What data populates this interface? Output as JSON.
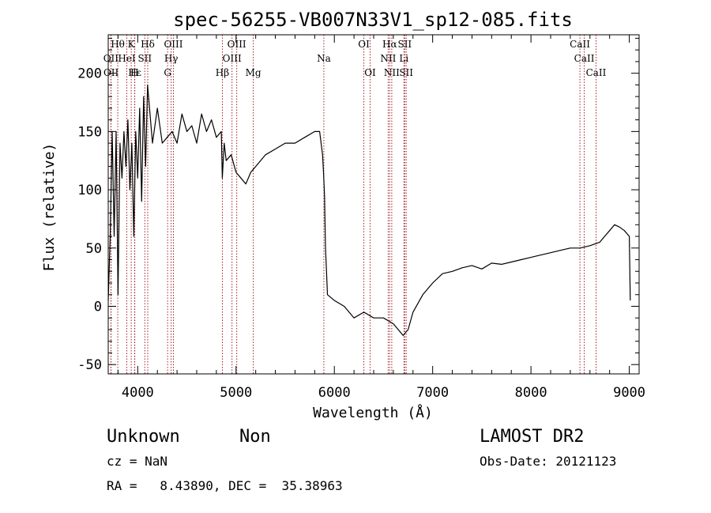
{
  "chart_data": {
    "type": "line",
    "title": "spec-56255-VB007N33V1_sp12-085.fits",
    "xlabel": "Wavelength (Å)",
    "ylabel": "Flux (relative)",
    "xlim": [
      3700,
      9100
    ],
    "ylim": [
      -58,
      233
    ],
    "x_ticks": [
      4000,
      5000,
      6000,
      7000,
      8000,
      9000
    ],
    "y_ticks": [
      -50,
      0,
      50,
      100,
      150,
      200
    ],
    "grid": false,
    "line_color": "#000000",
    "marker_color": "#a0202a",
    "series": [
      {
        "x": [
          3700,
          3720,
          3740,
          3760,
          3780,
          3800,
          3820,
          3840,
          3860,
          3880,
          3900,
          3920,
          3940,
          3960,
          3980,
          4000,
          4020,
          4040,
          4060,
          4080,
          4100,
          4150,
          4200,
          4250,
          4300,
          4350,
          4400,
          4450,
          4500,
          4550,
          4600,
          4650,
          4700,
          4750,
          4800,
          4850,
          4860,
          4880,
          4900,
          4950,
          5000,
          5050,
          5100,
          5150,
          5200,
          5300,
          5400,
          5500,
          5600,
          5700,
          5800,
          5850,
          5880,
          5890,
          5900,
          5910,
          5920,
          5930,
          6000,
          6100,
          6200,
          6300,
          6400,
          6500,
          6600,
          6700,
          6750,
          6800,
          6900,
          7000,
          7100,
          7200,
          7300,
          7400,
          7500,
          7600,
          7700,
          7800,
          7900,
          8000,
          8100,
          8200,
          8300,
          8400,
          8500,
          8600,
          8700,
          8750,
          8800,
          8850,
          8900,
          8950,
          9000,
          9010
        ],
        "y": [
          5,
          60,
          150,
          60,
          150,
          10,
          140,
          110,
          150,
          120,
          160,
          100,
          140,
          60,
          150,
          110,
          170,
          90,
          180,
          120,
          190,
          140,
          170,
          140,
          145,
          150,
          140,
          165,
          150,
          155,
          140,
          165,
          150,
          160,
          145,
          150,
          110,
          140,
          125,
          130,
          115,
          110,
          105,
          115,
          120,
          130,
          135,
          140,
          140,
          145,
          150,
          150,
          130,
          115,
          95,
          50,
          30,
          10,
          5,
          0,
          -10,
          -5,
          -10,
          -10,
          -15,
          -25,
          -20,
          -5,
          10,
          20,
          28,
          30,
          33,
          35,
          32,
          37,
          36,
          38,
          40,
          42,
          44,
          46,
          48,
          50,
          50,
          52,
          55,
          60,
          65,
          70,
          68,
          65,
          60,
          5
        ]
      }
    ],
    "line_markers": [
      {
        "name": "Hθ",
        "x": 3797,
        "row": 0
      },
      {
        "name": "K",
        "x": 3934,
        "row": 0
      },
      {
        "name": "Hδ",
        "x": 4102,
        "row": 0
      },
      {
        "name": "OIII",
        "x": 4363,
        "row": 0
      },
      {
        "name": "OIII",
        "x": 5007,
        "row": 0
      },
      {
        "name": "OI",
        "x": 6300,
        "row": 0
      },
      {
        "name": "Hα",
        "x": 6563,
        "row": 0
      },
      {
        "name": "SII",
        "x": 6716,
        "row": 0
      },
      {
        "name": "CaII",
        "x": 8498,
        "row": 0
      },
      {
        "name": "OII",
        "x": 3727,
        "row": 1
      },
      {
        "name": "HeI",
        "x": 3889,
        "row": 1
      },
      {
        "name": "SII",
        "x": 4072,
        "row": 1
      },
      {
        "name": "Hγ",
        "x": 4340,
        "row": 1
      },
      {
        "name": "OIII",
        "x": 4959,
        "row": 1
      },
      {
        "name": "Na",
        "x": 5893,
        "row": 1
      },
      {
        "name": "NII",
        "x": 6548,
        "row": 1
      },
      {
        "name": "Li",
        "x": 6708,
        "row": 1
      },
      {
        "name": "CaII",
        "x": 8542,
        "row": 1
      },
      {
        "name": "OII",
        "x": 3729,
        "row": 2
      },
      {
        "name": "Hε",
        "x": 3970,
        "row": 2
      },
      {
        "name": "H",
        "x": 3968,
        "row": 2
      },
      {
        "name": "G",
        "x": 4304,
        "row": 2
      },
      {
        "name": "Hβ",
        "x": 4861,
        "row": 2
      },
      {
        "name": "Mg",
        "x": 5175,
        "row": 2
      },
      {
        "name": "OI",
        "x": 6364,
        "row": 2
      },
      {
        "name": "NII",
        "x": 6584,
        "row": 2
      },
      {
        "name": "SII",
        "x": 6731,
        "row": 2
      },
      {
        "name": "CaII",
        "x": 8662,
        "row": 2
      }
    ]
  },
  "footer": {
    "class_label": "Unknown",
    "subclass_label": "Non",
    "survey": "LAMOST DR2",
    "cz": "cz = NaN",
    "obs_date": "Obs-Date: 20121123",
    "coords": "RA =   8.43890, DEC =  35.38963"
  }
}
